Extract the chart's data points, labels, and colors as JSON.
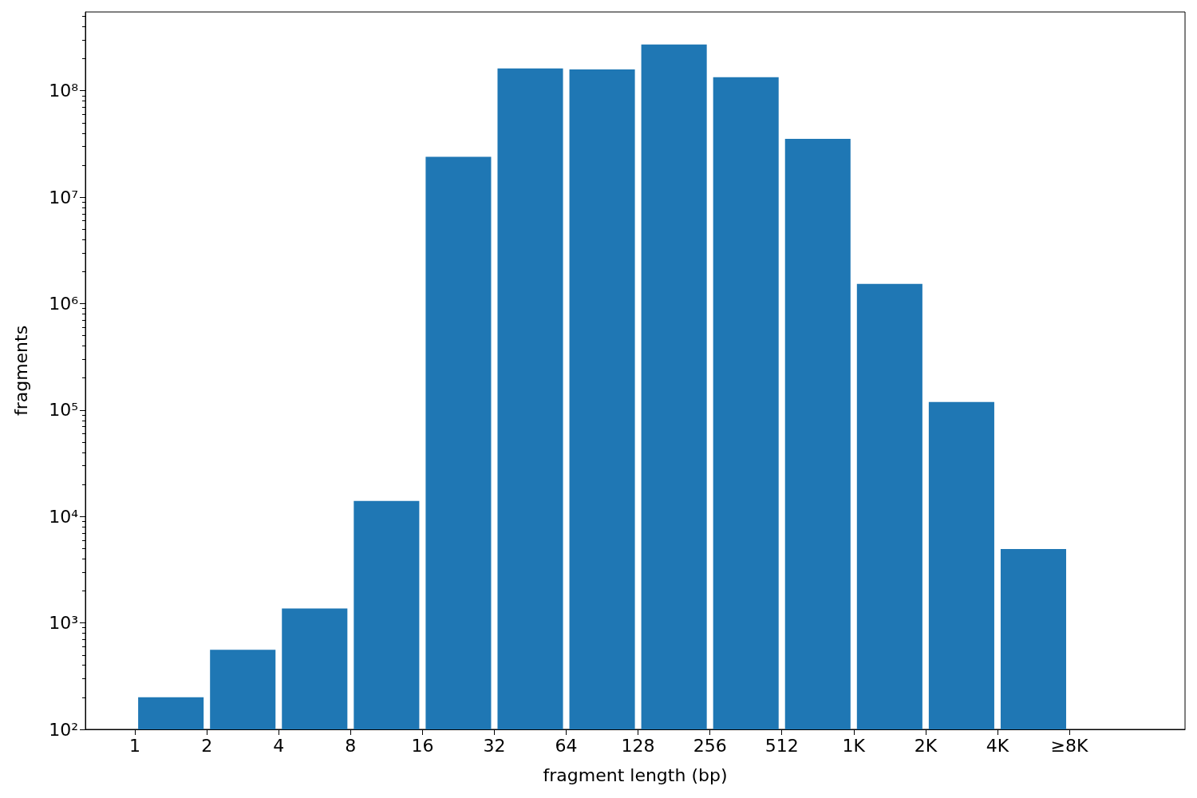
{
  "chart_data": {
    "type": "histogram",
    "xlabel": "fragment length (bp)",
    "ylabel": "fragments",
    "bins": [
      1,
      2,
      4,
      8,
      16,
      32,
      64,
      128,
      256,
      512,
      1024,
      2048,
      4096,
      8192
    ],
    "values": [
      200,
      560,
      1370,
      14000,
      24000000,
      162000000,
      159000000,
      272000000,
      134000000,
      35300000,
      1530000,
      119000,
      4950
    ],
    "color": "#1f77b4",
    "log": "xy",
    "xlim": [
      0.62,
      25000
    ],
    "xticks": [
      1,
      2,
      4,
      8,
      16,
      32,
      64,
      128,
      256,
      512,
      {
        "value": 1024,
        "label": "1K"
      },
      {
        "value": 2048,
        "label": "2K"
      },
      {
        "value": 4096,
        "label": "4K"
      },
      {
        "value": 8192,
        "label": "≥8K"
      }
    ],
    "ylim": [
      100,
      550000000
    ],
    "yticks": [
      {
        "value": 100,
        "label": "10²"
      },
      {
        "value": 1000,
        "label": "10³"
      },
      {
        "value": 10000,
        "label": "10⁴"
      },
      {
        "value": 100000,
        "label": "10⁵"
      },
      {
        "value": 1000000,
        "label": "10⁶"
      },
      {
        "value": 10000000,
        "label": "10⁷"
      },
      {
        "value": 100000000,
        "label": "10⁸"
      },
      {
        "value": 200,
        "label": null
      },
      {
        "value": 300,
        "label": null
      },
      {
        "value": 400,
        "label": null
      },
      {
        "value": 500,
        "label": null
      },
      {
        "value": 600,
        "label": null
      },
      {
        "value": 700,
        "label": null
      },
      {
        "value": 800,
        "label": null
      },
      {
        "value": 900,
        "label": null
      },
      {
        "value": 2000,
        "label": null
      },
      {
        "value": 3000,
        "label": null
      },
      {
        "value": 4000,
        "label": null
      },
      {
        "value": 5000,
        "label": null
      },
      {
        "value": 6000,
        "label": null
      },
      {
        "value": 7000,
        "label": null
      },
      {
        "value": 8000,
        "label": null
      },
      {
        "value": 9000,
        "label": null
      },
      {
        "value": 20000,
        "label": null
      },
      {
        "value": 30000,
        "label": null
      },
      {
        "value": 40000,
        "label": null
      },
      {
        "value": 50000,
        "label": null
      },
      {
        "value": 60000,
        "label": null
      },
      {
        "value": 70000,
        "label": null
      },
      {
        "value": 80000,
        "label": null
      },
      {
        "value": 90000,
        "label": null
      },
      {
        "value": 200000,
        "label": null
      },
      {
        "value": 300000,
        "label": null
      },
      {
        "value": 400000,
        "label": null
      },
      {
        "value": 500000,
        "label": null
      },
      {
        "value": 600000,
        "label": null
      },
      {
        "value": 700000,
        "label": null
      },
      {
        "value": 800000,
        "label": null
      },
      {
        "value": 900000,
        "label": null
      },
      {
        "value": 2000000,
        "label": null
      },
      {
        "value": 3000000,
        "label": null
      },
      {
        "value": 4000000,
        "label": null
      },
      {
        "value": 5000000,
        "label": null
      },
      {
        "value": 6000000,
        "label": null
      },
      {
        "value": 7000000,
        "label": null
      },
      {
        "value": 8000000,
        "label": null
      },
      {
        "value": 9000000,
        "label": null
      },
      {
        "value": 20000000,
        "label": null
      },
      {
        "value": 30000000,
        "label": null
      },
      {
        "value": 40000000,
        "label": null
      },
      {
        "value": 50000000,
        "label": null
      },
      {
        "value": 60000000,
        "label": null
      },
      {
        "value": 70000000,
        "label": null
      },
      {
        "value": 80000000,
        "label": null
      },
      {
        "value": 90000000,
        "label": null
      },
      {
        "value": 200000000,
        "label": null
      },
      {
        "value": 300000000,
        "label": null
      },
      {
        "value": 400000000,
        "label": null
      },
      {
        "value": 500000000,
        "label": null
      }
    ]
  }
}
